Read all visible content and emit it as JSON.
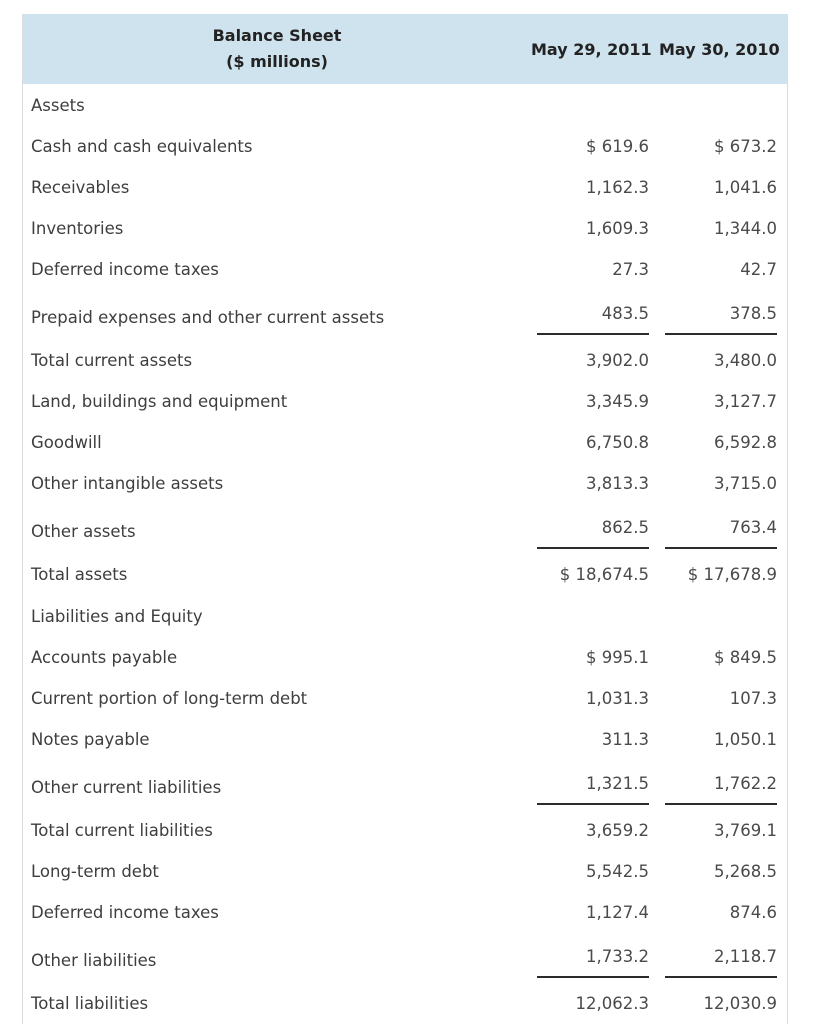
{
  "header": {
    "title_line1": "Balance Sheet",
    "title_line2": "($ millions)",
    "col_a": "May 29, 2011",
    "col_b": "May 30, 2010"
  },
  "rows": [
    {
      "label": "Assets",
      "a": "",
      "b": "",
      "kind": "section"
    },
    {
      "label": "Cash and cash equivalents",
      "a": "$ 619.6",
      "b": "$ 673.2",
      "kind": "normal"
    },
    {
      "label": "Receivables",
      "a": "1,162.3",
      "b": "1,041.6",
      "kind": "normal"
    },
    {
      "label": "Inventories",
      "a": "1,609.3",
      "b": "1,344.0",
      "kind": "normal"
    },
    {
      "label": "Deferred income taxes",
      "a": "27.3",
      "b": "42.7",
      "kind": "normal"
    },
    {
      "label": "Prepaid expenses and other current assets",
      "a": "483.5",
      "b": "378.5",
      "kind": "sub"
    },
    {
      "label": "Total current assets",
      "a": "3,902.0",
      "b": "3,480.0",
      "kind": "normal"
    },
    {
      "label": "Land, buildings and equipment",
      "a": "3,345.9",
      "b": "3,127.7",
      "kind": "normal"
    },
    {
      "label": "Goodwill",
      "a": "6,750.8",
      "b": "6,592.8",
      "kind": "normal"
    },
    {
      "label": "Other intangible assets",
      "a": "3,813.3",
      "b": "3,715.0",
      "kind": "normal"
    },
    {
      "label": "Other assets",
      "a": "862.5",
      "b": "763.4",
      "kind": "sub"
    },
    {
      "label": "Total assets",
      "a": "$ 18,674.5",
      "b": "$ 17,678.9",
      "kind": "normal"
    },
    {
      "label": "Liabilities and Equity",
      "a": "",
      "b": "",
      "kind": "section"
    },
    {
      "label": "Accounts payable",
      "a": "$ 995.1",
      "b": "$ 849.5",
      "kind": "normal"
    },
    {
      "label": "Current portion of long-term debt",
      "a": "1,031.3",
      "b": "107.3",
      "kind": "normal"
    },
    {
      "label": "Notes payable",
      "a": "311.3",
      "b": "1,050.1",
      "kind": "normal"
    },
    {
      "label": "Other current liabilities",
      "a": "1,321.5",
      "b": "1,762.2",
      "kind": "sub"
    },
    {
      "label": "Total current liabilities",
      "a": "3,659.2",
      "b": "3,769.1",
      "kind": "normal"
    },
    {
      "label": "Long-term debt",
      "a": "5,542.5",
      "b": "5,268.5",
      "kind": "normal"
    },
    {
      "label": "Deferred income taxes",
      "a": "1,127.4",
      "b": "874.6",
      "kind": "normal"
    },
    {
      "label": "Other liabilities",
      "a": "1,733.2",
      "b": "2,118.7",
      "kind": "sub"
    },
    {
      "label": "Total liabilities",
      "a": "12,062.3",
      "b": "12,030.9",
      "kind": "normal"
    }
  ]
}
